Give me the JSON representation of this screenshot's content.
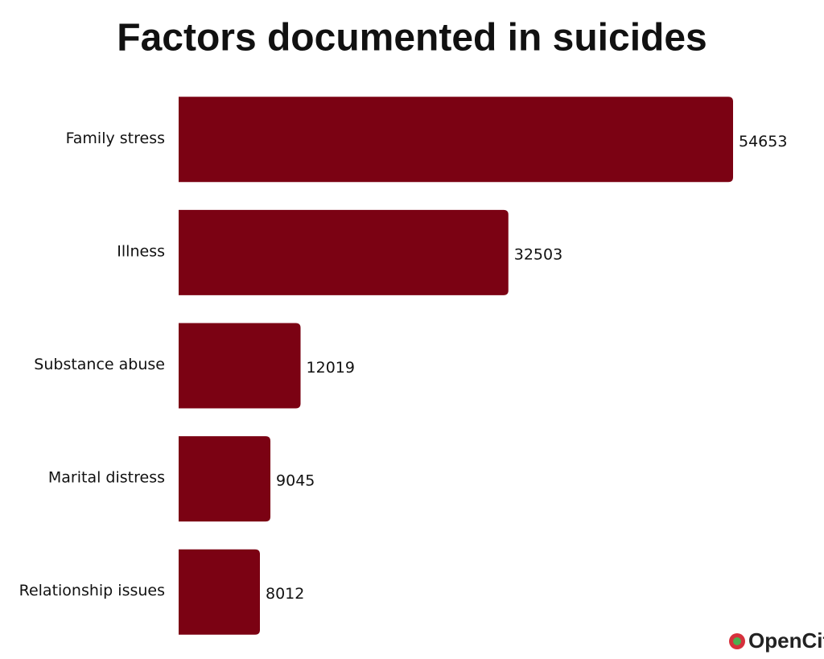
{
  "chart_data": {
    "type": "bar",
    "orientation": "horizontal",
    "title": "Factors documented in suicides",
    "categories": [
      "Family stress",
      "Illness",
      "Substance abuse",
      "Marital distress",
      "Relationship issues"
    ],
    "values": [
      54653,
      32503,
      12019,
      9045,
      8012
    ],
    "color": "#7b0213"
  },
  "logo": "OpenCity"
}
